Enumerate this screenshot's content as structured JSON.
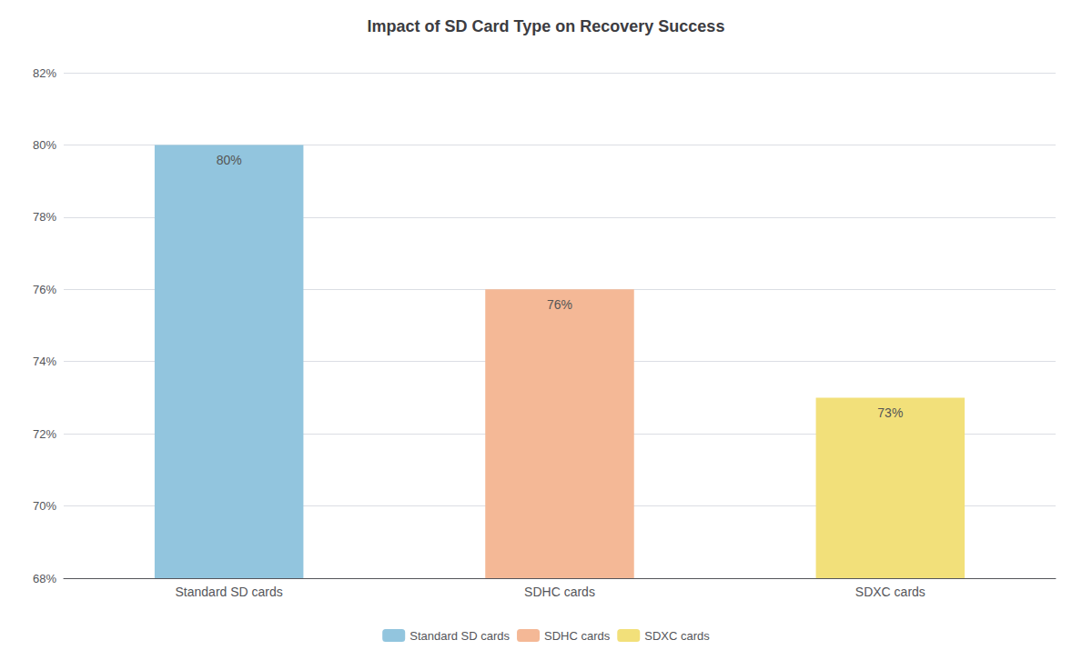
{
  "chart_data": {
    "type": "bar",
    "title": "Impact of SD Card Type on Recovery Success",
    "categories": [
      "Standard SD cards",
      "SDHC cards",
      "SDXC cards"
    ],
    "values": [
      80,
      76,
      73
    ],
    "value_labels": [
      "80%",
      "76%",
      "73%"
    ],
    "colors": [
      "#92C5DE",
      "#F4B896",
      "#F2E07A"
    ],
    "ylim": [
      68,
      82
    ],
    "yticks": [
      {
        "value": 68,
        "label": "68%"
      },
      {
        "value": 70,
        "label": "70%"
      },
      {
        "value": 72,
        "label": "72%"
      },
      {
        "value": 74,
        "label": "74%"
      },
      {
        "value": 76,
        "label": "76%"
      },
      {
        "value": 78,
        "label": "78%"
      },
      {
        "value": 80,
        "label": "80%"
      },
      {
        "value": 82,
        "label": "82%"
      }
    ],
    "grid": true,
    "data_labels": true,
    "legend": "bottom"
  }
}
